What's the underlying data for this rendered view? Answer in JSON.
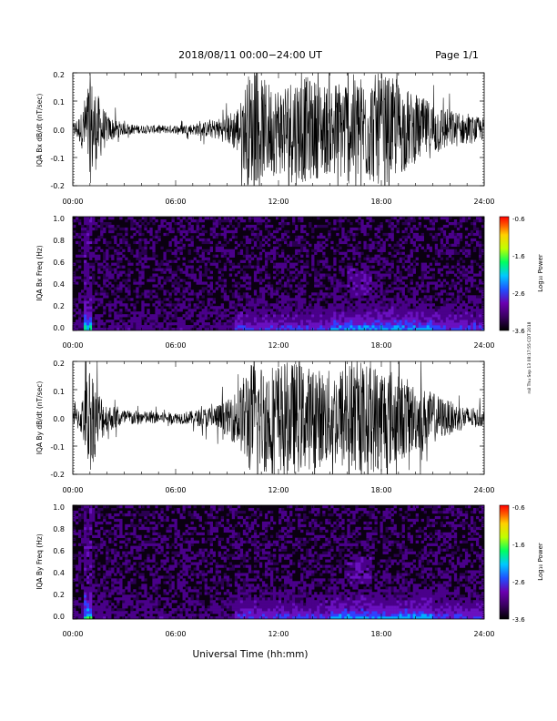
{
  "header": {
    "title": "2018/08/11   00:00−24:00 UT",
    "page": "Page 1/1"
  },
  "x_axis": {
    "ticks": [
      "00:00",
      "06:00",
      "12:00",
      "18:00",
      "24:00"
    ],
    "label": "Universal Time (hh:mm)"
  },
  "side_note": "rsil Thu Sep 13 08:17:55 CDT 2018",
  "colors": {
    "trace": "#000000",
    "spec_background": "#0a0010"
  },
  "colorbar_stops": [
    "#000000",
    "#3a0060",
    "#6a00b0",
    "#2050ff",
    "#00c8ff",
    "#00ff60",
    "#c0ff00",
    "#ffd000",
    "#ff6000",
    "#ff0000"
  ],
  "chart_data": [
    {
      "type": "line",
      "ylabel": "IQA Bx dB/dt (nT/sec)",
      "xlim": [
        0,
        24
      ],
      "ylim": [
        -0.2,
        0.2
      ],
      "yticks": [
        "0.2",
        "0.1",
        "0.0",
        "-0.1",
        "-0.2"
      ],
      "envelope": {
        "hours": [
          0,
          0.5,
          1,
          1.5,
          2,
          3,
          4,
          5,
          6,
          7,
          8,
          9,
          9.8,
          10.2,
          11,
          12,
          13,
          14,
          15,
          16,
          17,
          18,
          19,
          20,
          21,
          22,
          23,
          24
        ],
        "amplitude": [
          0.02,
          0.06,
          0.2,
          0.12,
          0.05,
          0.02,
          0.015,
          0.015,
          0.015,
          0.02,
          0.03,
          0.05,
          0.1,
          0.2,
          0.18,
          0.16,
          0.2,
          0.18,
          0.16,
          0.2,
          0.19,
          0.2,
          0.17,
          0.12,
          0.1,
          0.07,
          0.05,
          0.04
        ]
      }
    },
    {
      "type": "heatmap",
      "ylabel": "IQA Bx Freq (Hz)",
      "xlim": [
        0,
        24
      ],
      "ylim": [
        0.0,
        1.0
      ],
      "yticks": [
        "1.0",
        "0.8",
        "0.6",
        "0.4",
        "0.2",
        "0.0"
      ],
      "colorbar": {
        "label": "Log₁₀ Power",
        "ticks": [
          "-0.6",
          "-1.6",
          "-2.6",
          "-3.6"
        ],
        "range": [
          -3.6,
          -0.6
        ]
      }
    },
    {
      "type": "line",
      "ylabel": "IQA By dB/dt (nT/sec)",
      "xlim": [
        0,
        24
      ],
      "ylim": [
        -0.2,
        0.2
      ],
      "yticks": [
        "0.2",
        "0.1",
        "0.0",
        "-0.1",
        "-0.2"
      ],
      "envelope": {
        "hours": [
          0,
          0.5,
          1,
          1.5,
          2,
          3,
          4,
          5,
          6,
          7,
          8,
          9,
          9.8,
          10.2,
          11,
          12,
          13,
          14,
          15,
          16,
          17,
          18,
          19,
          20,
          21,
          22,
          23,
          24
        ],
        "amplitude": [
          0.02,
          0.06,
          0.2,
          0.1,
          0.05,
          0.03,
          0.025,
          0.02,
          0.02,
          0.025,
          0.04,
          0.06,
          0.12,
          0.2,
          0.2,
          0.2,
          0.2,
          0.18,
          0.17,
          0.2,
          0.19,
          0.2,
          0.16,
          0.12,
          0.09,
          0.06,
          0.04,
          0.03
        ]
      }
    },
    {
      "type": "heatmap",
      "ylabel": "IQA By Freq (Hz)",
      "xlim": [
        0,
        24
      ],
      "ylim": [
        0.0,
        1.0
      ],
      "yticks": [
        "1.0",
        "0.8",
        "0.6",
        "0.4",
        "0.2",
        "0.0"
      ],
      "colorbar": {
        "label": "Log₁₀ Power",
        "ticks": [
          "-0.6",
          "-1.6",
          "-2.6",
          "-3.6"
        ],
        "range": [
          -3.6,
          -0.6
        ]
      }
    }
  ]
}
